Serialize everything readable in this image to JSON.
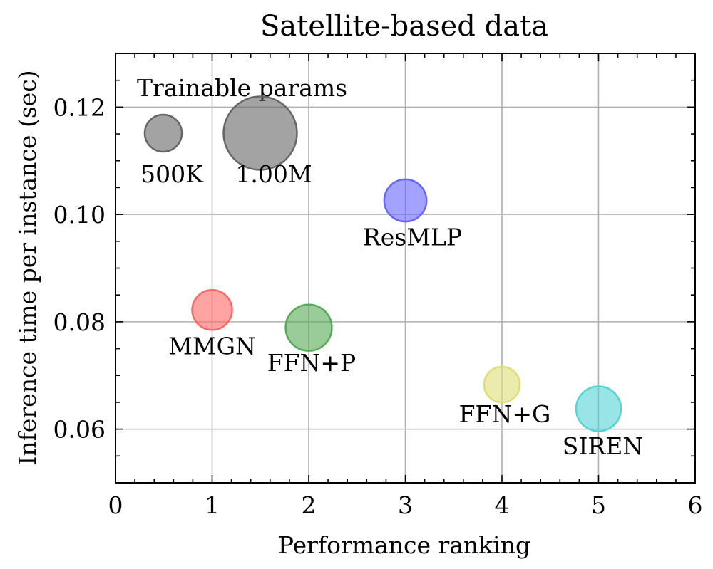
{
  "chart_data": {
    "type": "scatter",
    "title": "Satellite-based data",
    "xlabel": "Performance ranking",
    "ylabel": "Inference time per instance (sec)",
    "xlim": [
      0,
      6
    ],
    "ylim": [
      0.05,
      0.13
    ],
    "xticks": [
      0,
      1,
      2,
      3,
      4,
      5,
      6
    ],
    "xtick_labels": [
      "0",
      "1",
      "2",
      "3",
      "4",
      "5",
      "6"
    ],
    "yticks": [
      0.06,
      0.08,
      0.1,
      0.12
    ],
    "ytick_labels": [
      "0.06",
      "0.08",
      "0.10",
      "0.12"
    ],
    "grid": true,
    "points": [
      {
        "label": "MMGN",
        "x": 1,
        "y": 0.0822,
        "params_millions": 0.5,
        "color": "#ff6666"
      },
      {
        "label": "FFN+P",
        "x": 2,
        "y": 0.0789,
        "params_millions": 0.67,
        "color": "#55aa55"
      },
      {
        "label": "ResMLP",
        "x": 3,
        "y": 0.1026,
        "params_millions": 0.56,
        "color": "#6666ff"
      },
      {
        "label": "FFN+G",
        "x": 4,
        "y": 0.0683,
        "params_millions": 0.4,
        "color": "#dddd77"
      },
      {
        "label": "SIREN",
        "x": 5,
        "y": 0.0638,
        "params_millions": 0.63,
        "color": "#55d4d4"
      }
    ],
    "legend": {
      "title": "Trainable params",
      "placement": "top-left",
      "entries": [
        {
          "label": "500K",
          "params_millions": 0.5,
          "color": "#666666"
        },
        {
          "label": "1.00M",
          "params_millions": 1.0,
          "color": "#666666"
        }
      ]
    }
  }
}
